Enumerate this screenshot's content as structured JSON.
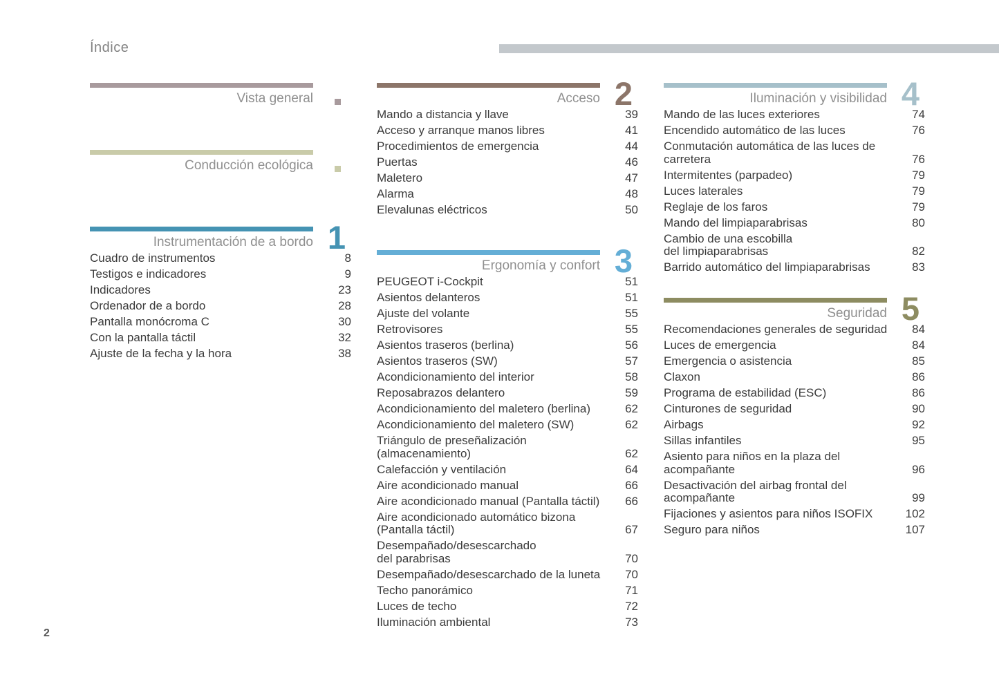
{
  "page": {
    "title": "Índice",
    "page_number": "2"
  },
  "colors": {
    "top_accent_bar": "#c3c8cc",
    "entry_text": "#3b3b3b",
    "section_title_text": "#8f8f8f"
  },
  "columns": [
    {
      "blocks": [
        {
          "type": "plain",
          "label": "Vista general",
          "color": "#a89a9d"
        },
        {
          "type": "plain",
          "label": "Conducción ecológica",
          "color": "#c9cba9"
        },
        {
          "type": "section",
          "number": "1",
          "title": "Instrumentación de a bordo",
          "color": "#4593b3",
          "entries": [
            {
              "title": "Cuadro de instrumentos",
              "page": "8"
            },
            {
              "title": "Testigos e indicadores",
              "page": "9"
            },
            {
              "title": "Indicadores",
              "page": "23"
            },
            {
              "title": "Ordenador de a bordo",
              "page": "28"
            },
            {
              "title": "Pantalla monócroma C",
              "page": "30"
            },
            {
              "title": "Con la pantalla táctil",
              "page": "32"
            },
            {
              "title": "Ajuste de la fecha y la hora",
              "page": "38"
            }
          ]
        }
      ]
    },
    {
      "blocks": [
        {
          "type": "section",
          "number": "2",
          "title": "Acceso",
          "color": "#8c7569",
          "entries": [
            {
              "title": "Mando a distancia y llave",
              "page": "39"
            },
            {
              "title": "Acceso y arranque manos libres",
              "page": "41"
            },
            {
              "title": "Procedimientos de emergencia",
              "page": "44"
            },
            {
              "title": "Puertas",
              "page": "46"
            },
            {
              "title": "Maletero",
              "page": "47"
            },
            {
              "title": "Alarma",
              "page": "48"
            },
            {
              "title": "Elevalunas eléctricos",
              "page": "50"
            }
          ]
        },
        {
          "type": "section",
          "number": "3",
          "title": "Ergonomía y confort",
          "color": "#64aed6",
          "entries": [
            {
              "title": "PEUGEOT i-Cockpit",
              "page": "51"
            },
            {
              "title": "Asientos delanteros",
              "page": "51"
            },
            {
              "title": "Ajuste del volante",
              "page": "55"
            },
            {
              "title": "Retrovisores",
              "page": "55"
            },
            {
              "title": "Asientos traseros (berlina)",
              "page": "56"
            },
            {
              "title": "Asientos traseros (SW)",
              "page": "57"
            },
            {
              "title": "Acondicionamiento del interior",
              "page": "58"
            },
            {
              "title": "Reposabrazos delantero",
              "page": "59"
            },
            {
              "title": "Acondicionamiento del maletero (berlina)",
              "page": "62"
            },
            {
              "title": "Acondicionamiento del maletero (SW)",
              "page": "62"
            },
            {
              "title": "Triángulo de preseñalización\n(almacenamiento)",
              "page": "62"
            },
            {
              "title": "Calefacción y ventilación",
              "page": "64"
            },
            {
              "title": "Aire acondicionado manual",
              "page": "66"
            },
            {
              "title": "Aire acondicionado manual (Pantalla táctil)",
              "page": "66"
            },
            {
              "title": "Aire acondicionado automático bizona\n(Pantalla táctil)",
              "page": "67"
            },
            {
              "title": "Desempañado/desescarchado\ndel parabrisas",
              "page": "70"
            },
            {
              "title": "Desempañado/desescarchado de la luneta",
              "page": "70"
            },
            {
              "title": "Techo panorámico",
              "page": "71"
            },
            {
              "title": "Luces de techo",
              "page": "72"
            },
            {
              "title": "Iluminación ambiental",
              "page": "73"
            }
          ]
        }
      ]
    },
    {
      "blocks": [
        {
          "type": "section",
          "number": "4",
          "title": "Iluminación y visibilidad",
          "color": "#a6c0ca",
          "entries": [
            {
              "title": "Mando de las luces exteriores",
              "page": "74"
            },
            {
              "title": "Encendido automático de las luces",
              "page": "76"
            },
            {
              "title": "Conmutación automática de las luces de\ncarretera",
              "page": "76"
            },
            {
              "title": "Intermitentes (parpadeo)",
              "page": "79"
            },
            {
              "title": "Luces laterales",
              "page": "79"
            },
            {
              "title": "Reglaje de los faros",
              "page": "79"
            },
            {
              "title": "Mando del limpiaparabrisas",
              "page": "80"
            },
            {
              "title": "Cambio de una escobilla\ndel limpiaparabrisas",
              "page": "82"
            },
            {
              "title": "Barrido automático del limpiaparabrisas",
              "page": "83"
            }
          ]
        },
        {
          "type": "section",
          "number": "5",
          "title": "Seguridad",
          "color": "#8d8c61",
          "entries": [
            {
              "title": "Recomendaciones generales de seguridad",
              "page": "84"
            },
            {
              "title": "Luces de emergencia",
              "page": "84"
            },
            {
              "title": "Emergencia o asistencia",
              "page": "85"
            },
            {
              "title": "Claxon",
              "page": "86"
            },
            {
              "title": "Programa de estabilidad (ESC)",
              "page": "86"
            },
            {
              "title": "Cinturones de seguridad",
              "page": "90"
            },
            {
              "title": "Airbags",
              "page": "92"
            },
            {
              "title": "Sillas infantiles",
              "page": "95"
            },
            {
              "title": "Asiento para niños en la plaza del\nacompañante",
              "page": "96"
            },
            {
              "title": "Desactivación del airbag frontal del\nacompañante",
              "page": "99"
            },
            {
              "title": "Fijaciones y asientos para niños ISOFIX",
              "page": "102"
            },
            {
              "title": "Seguro para niños",
              "page": "107"
            }
          ]
        }
      ]
    }
  ]
}
